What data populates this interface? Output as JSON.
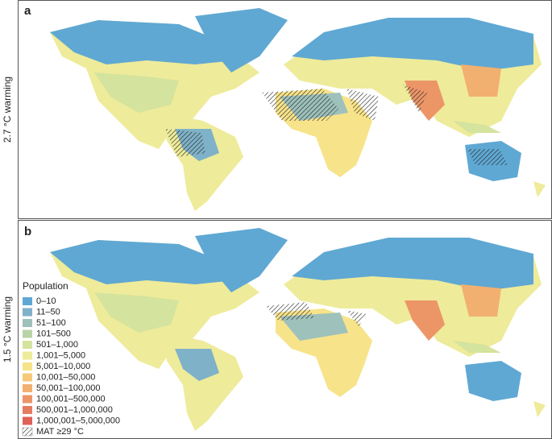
{
  "panels": [
    {
      "letter": "a",
      "label": "2.7 °C warming"
    },
    {
      "letter": "b",
      "label": "1.5 °C warming"
    }
  ],
  "legend": {
    "title": "Population",
    "items": [
      {
        "label": "0–10",
        "color": "#5fa8d3"
      },
      {
        "label": "11–50",
        "color": "#7fb2c9"
      },
      {
        "label": "51–100",
        "color": "#9ec1bc"
      },
      {
        "label": "101–500",
        "color": "#b9d3a8"
      },
      {
        "label": "501–1,000",
        "color": "#d4e39d"
      },
      {
        "label": "1,001–5,000",
        "color": "#eeeb9a"
      },
      {
        "label": "5,001–10,000",
        "color": "#f7e38a"
      },
      {
        "label": "10,001–50,000",
        "color": "#f6c978"
      },
      {
        "label": "50,001–100,000",
        "color": "#f2b070"
      },
      {
        "label": "100,001–500,000",
        "color": "#ec9668"
      },
      {
        "label": "500,001–1,000,000",
        "color": "#e67c5f"
      },
      {
        "label": "1,000,001–5,000,000",
        "color": "#df6158"
      }
    ],
    "hatch_label": "MAT ≥29 °C"
  }
}
